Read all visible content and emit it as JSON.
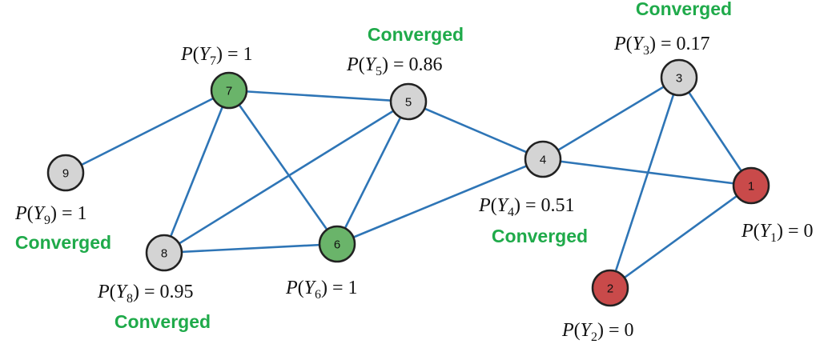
{
  "colors": {
    "edge": "#2e75b6",
    "grey_node": "#d4d4d4",
    "green_node": "#6ab46a",
    "red_node": "#c94a4a",
    "status_text": "#1faa4a"
  },
  "nodes": [
    {
      "id": "1",
      "color": "red",
      "prob": {
        "prefix": "P(",
        "var": "Y",
        "sub": "1",
        "suffix": ") = 0"
      },
      "status": ""
    },
    {
      "id": "2",
      "color": "red",
      "prob": {
        "prefix": "P(",
        "var": "Y",
        "sub": "2",
        "suffix": ") = 0"
      },
      "status": ""
    },
    {
      "id": "3",
      "color": "grey",
      "prob": {
        "prefix": "P(",
        "var": "Y",
        "sub": "3",
        "suffix": ") = 0.17"
      },
      "status": "Converged"
    },
    {
      "id": "4",
      "color": "grey",
      "prob": {
        "prefix": "P(",
        "var": "Y",
        "sub": "4",
        "suffix": ") = 0.51"
      },
      "status": "Converged"
    },
    {
      "id": "5",
      "color": "grey",
      "prob": {
        "prefix": "P(",
        "var": "Y",
        "sub": "5",
        "suffix": ") = 0.86"
      },
      "status": "Converged"
    },
    {
      "id": "6",
      "color": "green",
      "prob": {
        "prefix": "P(",
        "var": "Y",
        "sub": "6",
        "suffix": ") = 1"
      },
      "status": ""
    },
    {
      "id": "7",
      "color": "green",
      "prob": {
        "prefix": "P(",
        "var": "Y",
        "sub": "7",
        "suffix": ") = 1"
      },
      "status": ""
    },
    {
      "id": "8",
      "color": "grey",
      "prob": {
        "prefix": "P(",
        "var": "Y",
        "sub": "8",
        "suffix": ") = 0.95"
      },
      "status": "Converged"
    },
    {
      "id": "9",
      "color": "grey",
      "prob": {
        "prefix": "P(",
        "var": "Y",
        "sub": "9",
        "suffix": ") = 1"
      },
      "status": "Converged"
    }
  ],
  "edges": [
    [
      "9",
      "7"
    ],
    [
      "7",
      "5"
    ],
    [
      "7",
      "8"
    ],
    [
      "7",
      "6"
    ],
    [
      "5",
      "8"
    ],
    [
      "5",
      "6"
    ],
    [
      "5",
      "4"
    ],
    [
      "8",
      "6"
    ],
    [
      "6",
      "4"
    ],
    [
      "4",
      "3"
    ],
    [
      "4",
      "1"
    ],
    [
      "3",
      "1"
    ],
    [
      "3",
      "2"
    ],
    [
      "2",
      "1"
    ]
  ]
}
